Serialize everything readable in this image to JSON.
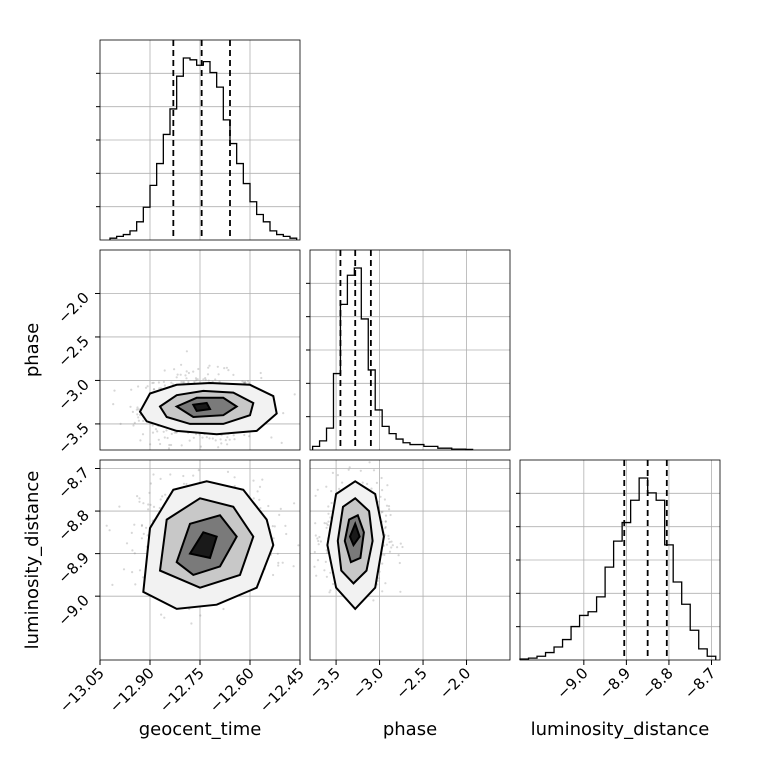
{
  "chart_data": {
    "type": "corner",
    "parameters": [
      "geocent_time",
      "phase",
      "luminosity_distance"
    ],
    "axes": {
      "geocent_time": {
        "range": [
          -13.05,
          -12.45
        ],
        "ticks": [
          -13.05,
          -12.9,
          -12.75,
          -12.6,
          -12.45
        ],
        "tick_labels": [
          "−13.05",
          "−12.90",
          "−12.75",
          "−12.60",
          "−12.45"
        ],
        "quantiles": [
          -12.83,
          -12.745,
          -12.66
        ],
        "hist_x": [
          -13.01,
          -12.99,
          -12.97,
          -12.95,
          -12.93,
          -12.91,
          -12.89,
          -12.87,
          -12.85,
          -12.83,
          -12.81,
          -12.79,
          -12.77,
          -12.75,
          -12.73,
          -12.71,
          -12.69,
          -12.67,
          -12.65,
          -12.63,
          -12.61,
          -12.59,
          -12.57,
          -12.55,
          -12.53,
          -12.51,
          -12.49,
          -12.47
        ],
        "hist_counts": [
          0.01,
          0.02,
          0.03,
          0.05,
          0.1,
          0.18,
          0.3,
          0.42,
          0.58,
          0.72,
          0.9,
          1.0,
          0.99,
          0.96,
          0.98,
          0.92,
          0.84,
          0.66,
          0.53,
          0.42,
          0.31,
          0.21,
          0.14,
          0.1,
          0.05,
          0.03,
          0.02,
          0.01
        ]
      },
      "phase": {
        "range": [
          -3.8,
          -1.5
        ],
        "ticks": [
          -3.5,
          -3.0,
          -2.5,
          -2.0
        ],
        "tick_labels": [
          "−3.5",
          "−3.0",
          "−2.5",
          "−2.0"
        ],
        "quantiles": [
          -3.45,
          -3.28,
          -3.1
        ],
        "hist_x": [
          -3.73,
          -3.65,
          -3.57,
          -3.49,
          -3.41,
          -3.33,
          -3.25,
          -3.17,
          -3.09,
          -3.01,
          -2.93,
          -2.85,
          -2.77,
          -2.69,
          -2.61,
          -2.53,
          -2.45,
          -2.37,
          -2.29,
          -2.21,
          -2.13,
          -2.05,
          -1.97
        ],
        "hist_counts": [
          0.02,
          0.05,
          0.12,
          0.42,
          0.8,
          0.96,
          1.0,
          0.72,
          0.44,
          0.22,
          0.13,
          0.09,
          0.06,
          0.04,
          0.03,
          0.03,
          0.02,
          0.02,
          0.01,
          0.01,
          0.005,
          0.005,
          0.003
        ]
      },
      "luminosity_distance": {
        "range": [
          -9.15,
          -8.68
        ],
        "ticks": [
          -9.0,
          -8.9,
          -8.8,
          -8.7
        ],
        "tick_labels": [
          "−9.0",
          "−8.9",
          "−8.8",
          "−8.7"
        ],
        "quantiles": [
          -8.905,
          -8.85,
          -8.805
        ],
        "hist_x": [
          -9.14,
          -9.12,
          -9.1,
          -9.08,
          -9.06,
          -9.04,
          -9.02,
          -9.0,
          -8.98,
          -8.96,
          -8.94,
          -8.92,
          -8.9,
          -8.88,
          -8.86,
          -8.84,
          -8.82,
          -8.8,
          -8.78,
          -8.76,
          -8.74,
          -8.72,
          -8.7
        ],
        "hist_counts": [
          0.005,
          0.01,
          0.02,
          0.04,
          0.07,
          0.11,
          0.18,
          0.24,
          0.26,
          0.34,
          0.5,
          0.64,
          0.74,
          0.86,
          0.98,
          0.9,
          0.86,
          0.62,
          0.42,
          0.3,
          0.16,
          0.06,
          0.02
        ]
      }
    },
    "pairs": [
      {
        "x": "geocent_time",
        "y": "phase",
        "center": [
          -12.75,
          -3.32
        ],
        "spread": [
          0.09,
          0.2
        ],
        "contours": [
          [
            [
              -12.93,
              -3.36
            ],
            [
              -12.9,
              -3.15
            ],
            [
              -12.82,
              -3.05
            ],
            [
              -12.72,
              -3.03
            ],
            [
              -12.6,
              -3.05
            ],
            [
              -12.53,
              -3.18
            ],
            [
              -12.52,
              -3.38
            ],
            [
              -12.58,
              -3.58
            ],
            [
              -12.7,
              -3.62
            ],
            [
              -12.82,
              -3.58
            ],
            [
              -12.91,
              -3.47
            ]
          ],
          [
            [
              -12.87,
              -3.3
            ],
            [
              -12.82,
              -3.17
            ],
            [
              -12.74,
              -3.12
            ],
            [
              -12.65,
              -3.14
            ],
            [
              -12.59,
              -3.26
            ],
            [
              -12.6,
              -3.4
            ],
            [
              -12.68,
              -3.5
            ],
            [
              -12.78,
              -3.5
            ],
            [
              -12.85,
              -3.42
            ]
          ],
          [
            [
              -12.82,
              -3.3
            ],
            [
              -12.76,
              -3.2
            ],
            [
              -12.68,
              -3.2
            ],
            [
              -12.64,
              -3.3
            ],
            [
              -12.68,
              -3.4
            ],
            [
              -12.77,
              -3.42
            ]
          ],
          [
            [
              -12.77,
              -3.28
            ],
            [
              -12.73,
              -3.26
            ],
            [
              -12.72,
              -3.33
            ],
            [
              -12.76,
              -3.35
            ]
          ]
        ]
      },
      {
        "x": "geocent_time",
        "y": "luminosity_distance",
        "center": [
          -12.73,
          -8.86
        ],
        "spread": [
          0.1,
          0.065
        ],
        "contours": [
          [
            [
              -12.92,
              -8.99
            ],
            [
              -12.9,
              -8.84
            ],
            [
              -12.83,
              -8.75
            ],
            [
              -12.73,
              -8.73
            ],
            [
              -12.62,
              -8.75
            ],
            [
              -12.55,
              -8.82
            ],
            [
              -12.53,
              -8.88
            ],
            [
              -12.58,
              -8.98
            ],
            [
              -12.7,
              -9.02
            ],
            [
              -12.82,
              -9.03
            ]
          ],
          [
            [
              -12.87,
              -8.94
            ],
            [
              -12.85,
              -8.82
            ],
            [
              -12.75,
              -8.77
            ],
            [
              -12.65,
              -8.79
            ],
            [
              -12.59,
              -8.86
            ],
            [
              -12.63,
              -8.95
            ],
            [
              -12.75,
              -8.98
            ]
          ],
          [
            [
              -12.82,
              -8.92
            ],
            [
              -12.78,
              -8.83
            ],
            [
              -12.69,
              -8.81
            ],
            [
              -12.64,
              -8.86
            ],
            [
              -12.69,
              -8.93
            ],
            [
              -12.77,
              -8.95
            ]
          ],
          [
            [
              -12.78,
              -8.9
            ],
            [
              -12.74,
              -8.85
            ],
            [
              -12.7,
              -8.86
            ],
            [
              -12.72,
              -8.91
            ]
          ]
        ]
      },
      {
        "x": "phase",
        "y": "luminosity_distance",
        "center": [
          -3.27,
          -8.86
        ],
        "spread": [
          0.18,
          0.06
        ],
        "contours": [
          [
            [
              -3.6,
              -8.88
            ],
            [
              -3.5,
              -8.76
            ],
            [
              -3.28,
              -8.73
            ],
            [
              -3.05,
              -8.76
            ],
            [
              -2.95,
              -8.86
            ],
            [
              -3.05,
              -8.98
            ],
            [
              -3.28,
              -9.03
            ],
            [
              -3.5,
              -8.98
            ]
          ],
          [
            [
              -3.48,
              -8.87
            ],
            [
              -3.42,
              -8.79
            ],
            [
              -3.28,
              -8.77
            ],
            [
              -3.12,
              -8.8
            ],
            [
              -3.08,
              -8.87
            ],
            [
              -3.15,
              -8.94
            ],
            [
              -3.3,
              -8.97
            ],
            [
              -3.44,
              -8.94
            ]
          ],
          [
            [
              -3.4,
              -8.87
            ],
            [
              -3.35,
              -8.82
            ],
            [
              -3.25,
              -8.81
            ],
            [
              -3.18,
              -8.85
            ],
            [
              -3.22,
              -8.91
            ],
            [
              -3.33,
              -8.92
            ]
          ],
          [
            [
              -3.34,
              -8.86
            ],
            [
              -3.28,
              -8.83
            ],
            [
              -3.23,
              -8.86
            ],
            [
              -3.3,
              -8.88
            ]
          ]
        ]
      }
    ]
  }
}
